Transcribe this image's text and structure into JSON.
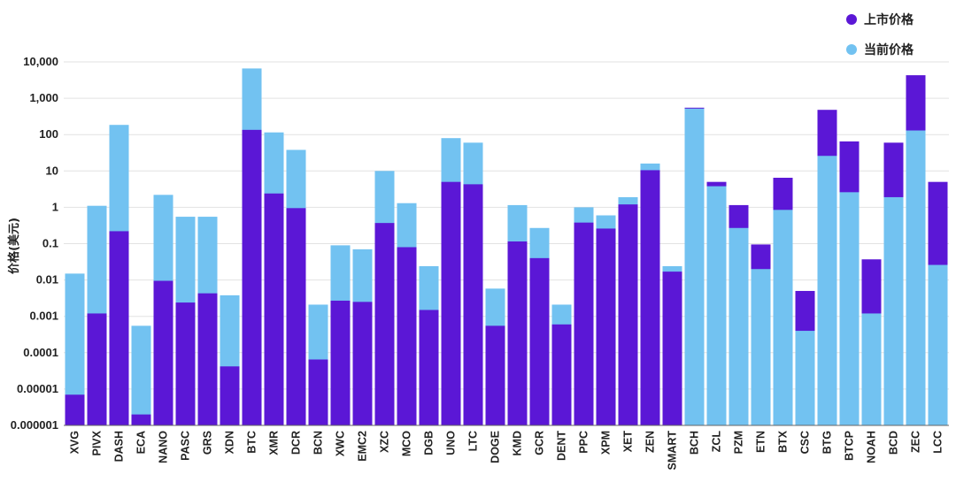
{
  "chart_data": {
    "type": "bar",
    "scale": "log",
    "ylabel": "价格(美元)",
    "ylim": [
      1e-06,
      10000
    ],
    "yticks": [
      "0.000001",
      "0.00001",
      "0.0001",
      "0.001",
      "0.01",
      "0.1",
      "1",
      "10",
      "100",
      "1,000",
      "10,000"
    ],
    "legend_position": "top-right",
    "grid": true,
    "categories": [
      "XVG",
      "PIVX",
      "DASH",
      "ECA",
      "NANO",
      "PASC",
      "GRS",
      "XDN",
      "BTC",
      "XMR",
      "DCR",
      "BCN",
      "XWC",
      "EMC2",
      "XZC",
      "MCO",
      "DGB",
      "UNO",
      "LTC",
      "DOGE",
      "KMD",
      "GCR",
      "DENT",
      "PPC",
      "XPM",
      "XET",
      "ZEN",
      "SMART",
      "BCH",
      "ZCL",
      "PZM",
      "ETN",
      "BTX",
      "CSC",
      "BTG",
      "BTCP",
      "NOAH",
      "BCD",
      "ZEC",
      "LCC"
    ],
    "series": [
      {
        "name": "上市价格",
        "color": "#5B17D6",
        "values": [
          7e-06,
          0.0012,
          0.22,
          2e-06,
          0.0095,
          0.0024,
          0.0043,
          4.2e-05,
          135,
          2.4,
          0.95,
          6.5e-05,
          0.0027,
          0.0025,
          0.37,
          0.08,
          0.0015,
          5.0,
          4.3,
          0.00055,
          0.115,
          0.04,
          0.0006,
          0.38,
          0.26,
          1.2,
          10.5,
          0.017,
          550,
          5.0,
          1.15,
          0.095,
          6.5,
          0.005,
          480,
          65,
          0.037,
          60,
          4300,
          5.0
        ]
      },
      {
        "name": "当前价格",
        "color": "#72C2F1",
        "values": [
          0.015,
          1.1,
          185,
          0.00055,
          2.2,
          0.55,
          0.55,
          0.0038,
          6600,
          115,
          38,
          0.0021,
          0.09,
          0.07,
          10,
          1.3,
          0.024,
          80,
          60,
          0.0058,
          1.15,
          0.27,
          0.0021,
          1.0,
          0.6,
          1.9,
          16,
          0.024,
          520,
          3.8,
          0.27,
          0.02,
          0.85,
          0.0004,
          26,
          2.6,
          0.0012,
          1.9,
          130,
          0.026
        ]
      }
    ]
  }
}
